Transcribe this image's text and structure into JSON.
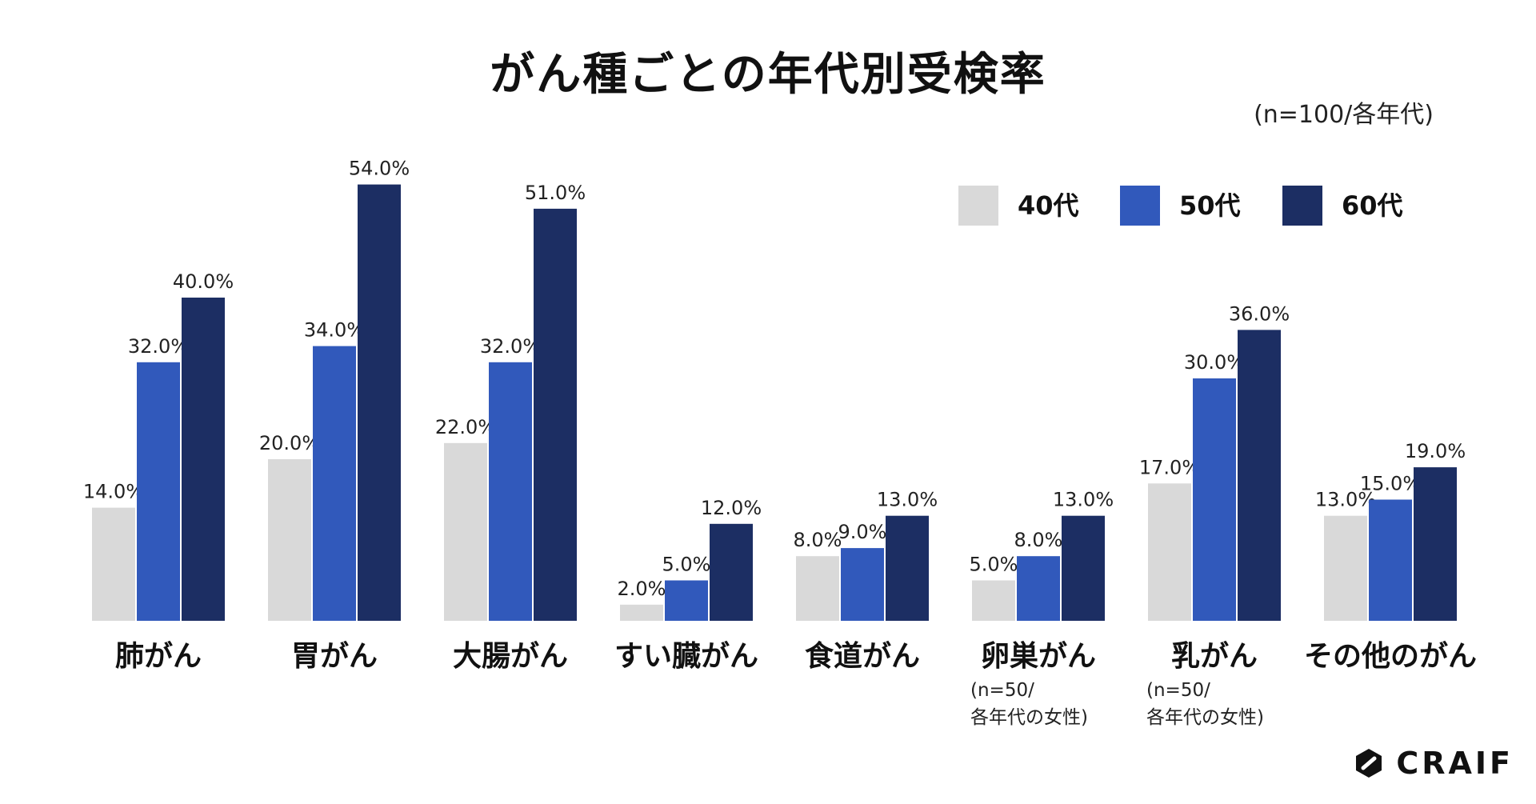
{
  "title": "がん種ごとの年代別受検率",
  "subtitle": "(n=100/各年代)",
  "brand": "CRAIF",
  "chart_data": {
    "type": "bar",
    "title": "がん種ごとの年代別受検率",
    "subtitle": "(n=100/各年代)",
    "xlabel": "",
    "ylabel": "",
    "ylim": [
      0,
      60
    ],
    "grid": false,
    "legend_position": "top-right",
    "value_format": "percent-1dp",
    "categories": [
      "肺がん",
      "胃がん",
      "大腸がん",
      "すい臓がん",
      "食道がん",
      "卵巣がん",
      "乳がん",
      "その他のがん"
    ],
    "category_notes": [
      "",
      "",
      "",
      "",
      "",
      "(n=50/\n各年代の女性)",
      "(n=50/\n各年代の女性)",
      ""
    ],
    "series": [
      {
        "name": "40代",
        "color": "#d9d9d9",
        "values": [
          14.0,
          20.0,
          22.0,
          2.0,
          8.0,
          5.0,
          17.0,
          13.0
        ]
      },
      {
        "name": "50代",
        "color": "#3159bb",
        "values": [
          32.0,
          34.0,
          32.0,
          5.0,
          9.0,
          8.0,
          30.0,
          15.0
        ]
      },
      {
        "name": "60代",
        "color": "#1c2e63",
        "values": [
          40.0,
          54.0,
          51.0,
          12.0,
          13.0,
          13.0,
          36.0,
          19.0
        ]
      }
    ]
  }
}
